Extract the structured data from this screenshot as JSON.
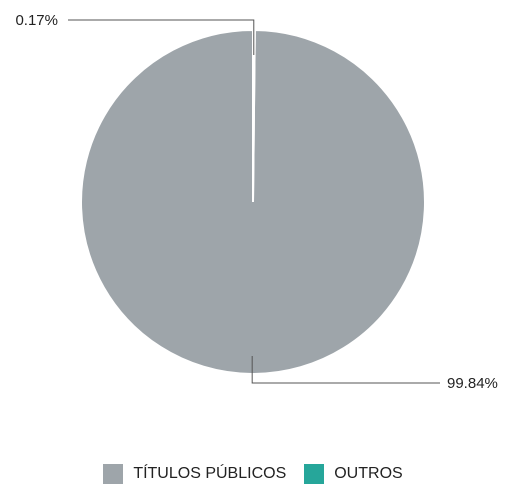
{
  "chart_data": {
    "type": "pie",
    "slices": [
      {
        "label": "TÍTULOS PÚBLICOS",
        "value": 99.84,
        "value_label": "99.84%",
        "color": "#9ea5aa"
      },
      {
        "label": "OUTROS",
        "value": 0.17,
        "value_label": "0.17%",
        "color": "#26a69a"
      }
    ],
    "legend_position": "bottom",
    "separator_color": "#ffffff",
    "leader_line_color": "#555555"
  }
}
